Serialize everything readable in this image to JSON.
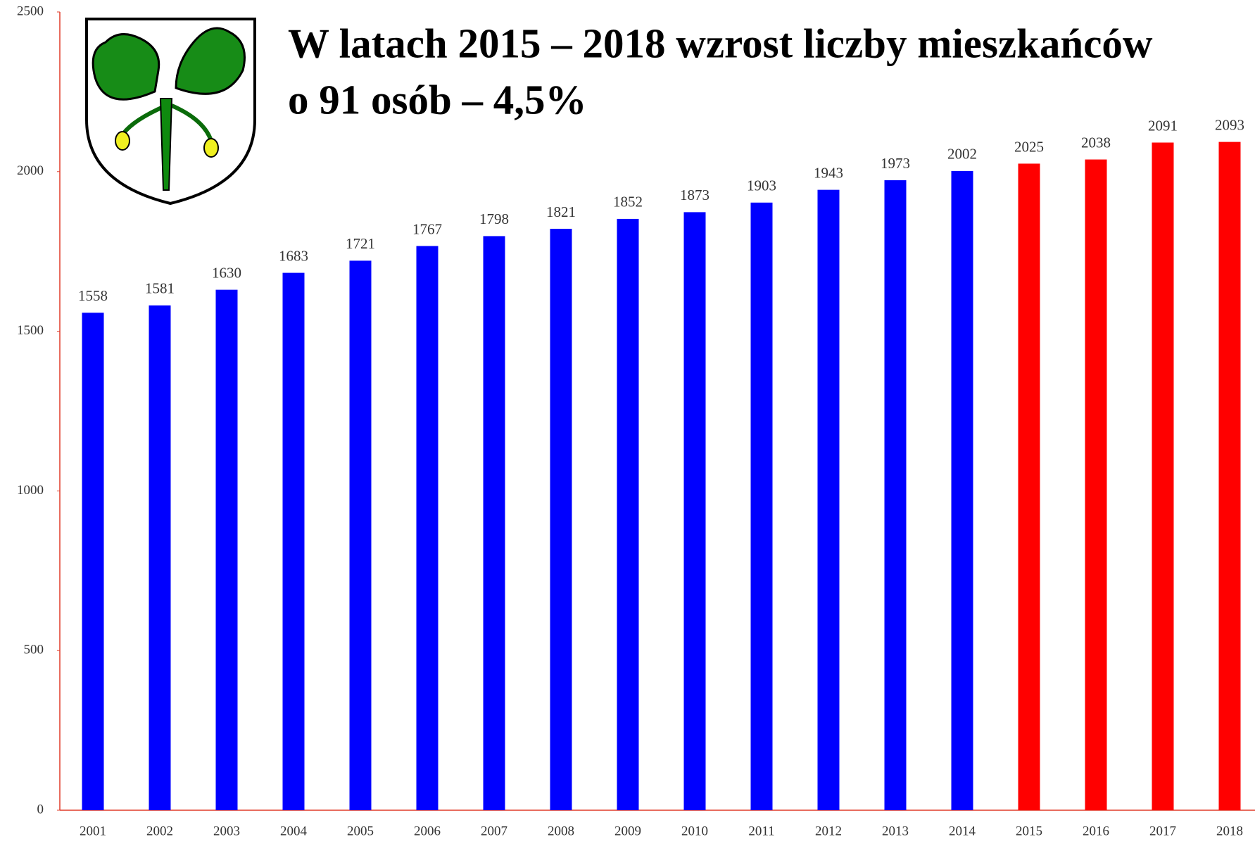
{
  "chart_data": {
    "type": "bar",
    "title": [
      "W latach 2015 – 2018 wzrost liczby mieszkańców",
      "o 91 osób – 4,5%"
    ],
    "categories": [
      "2001",
      "2002",
      "2003",
      "2004",
      "2005",
      "2006",
      "2007",
      "2008",
      "2009",
      "2010",
      "2011",
      "2012",
      "2013",
      "2014",
      "2015",
      "2016",
      "2017",
      "2018"
    ],
    "values": [
      1558,
      1581,
      1630,
      1683,
      1721,
      1767,
      1798,
      1821,
      1852,
      1873,
      1903,
      1943,
      1973,
      2002,
      2025,
      2038,
      2091,
      2093
    ],
    "colors": [
      "#0000ff",
      "#0000ff",
      "#0000ff",
      "#0000ff",
      "#0000ff",
      "#0000ff",
      "#0000ff",
      "#0000ff",
      "#0000ff",
      "#0000ff",
      "#0000ff",
      "#0000ff",
      "#0000ff",
      "#0000ff",
      "#ff0000",
      "#ff0000",
      "#ff0000",
      "#ff0000"
    ],
    "ylim": [
      0,
      2500
    ],
    "yticks": [
      0,
      500,
      1000,
      1500,
      2000,
      2500
    ],
    "grid": false
  }
}
